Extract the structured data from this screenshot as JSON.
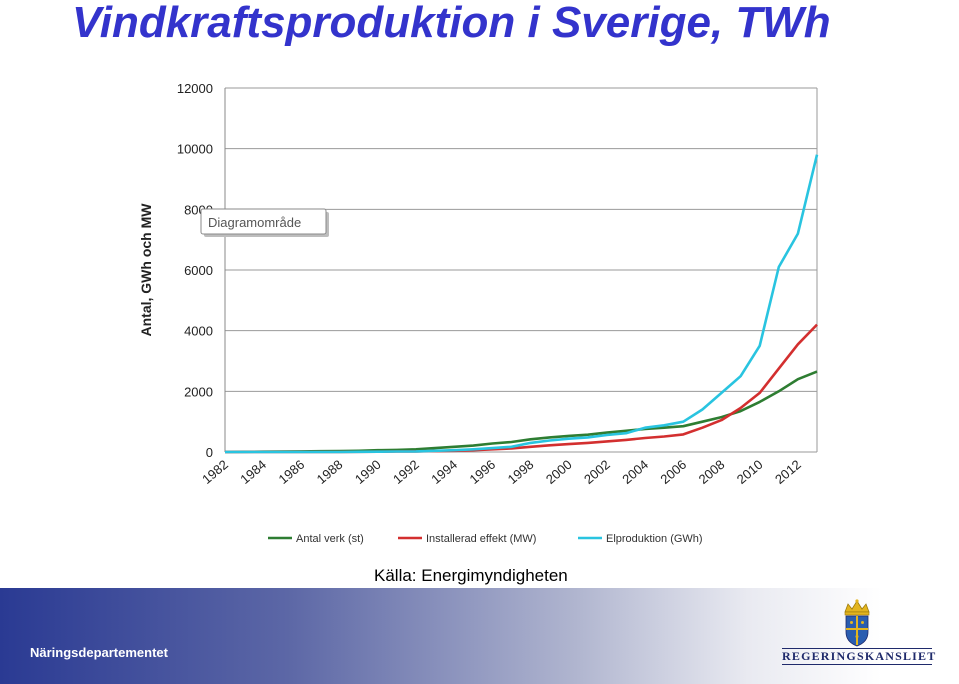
{
  "header": {
    "title": "Vindkraftsproduktion i Sverige, TWh"
  },
  "chart_data": {
    "type": "line",
    "ylabel": "Antal, GWh och MW",
    "ylim": [
      0,
      12000
    ],
    "yticks": [
      "0",
      "2000",
      "4000",
      "6000",
      "8000",
      "10000",
      "12000"
    ],
    "xlim": [
      1982,
      2013
    ],
    "xticks": [
      "1982",
      "1984",
      "1986",
      "1988",
      "1990",
      "1992",
      "1994",
      "1996",
      "1998",
      "2000",
      "2002",
      "2004",
      "2006",
      "2008",
      "2010",
      "2012"
    ],
    "grid": true,
    "legend_position": "bottom",
    "tooltip": "Diagramområde",
    "series": [
      {
        "name": "Antal verk (st)",
        "color": "#2e7d32",
        "x": [
          1982,
          1983,
          1984,
          1985,
          1986,
          1987,
          1988,
          1989,
          1990,
          1991,
          1992,
          1993,
          1994,
          1995,
          1996,
          1997,
          1998,
          1999,
          2000,
          2001,
          2002,
          2003,
          2004,
          2005,
          2006,
          2007,
          2008,
          2009,
          2010,
          2011,
          2012,
          2013
        ],
        "y": [
          0,
          5,
          10,
          15,
          20,
          25,
          30,
          40,
          60,
          70,
          90,
          130,
          170,
          210,
          280,
          330,
          420,
          480,
          530,
          570,
          640,
          700,
          760,
          800,
          850,
          1000,
          1150,
          1350,
          1650,
          2000,
          2400,
          2650
        ]
      },
      {
        "name": "Installerad effekt (MW)",
        "color": "#d32f2f",
        "x": [
          1982,
          1983,
          1984,
          1985,
          1986,
          1987,
          1988,
          1989,
          1990,
          1991,
          1992,
          1993,
          1994,
          1995,
          1996,
          1997,
          1998,
          1999,
          2000,
          2001,
          2002,
          2003,
          2004,
          2005,
          2006,
          2007,
          2008,
          2009,
          2010,
          2011,
          2012,
          2013
        ],
        "y": [
          0,
          0,
          0,
          0,
          0,
          0,
          0,
          5,
          10,
          15,
          20,
          30,
          40,
          60,
          90,
          120,
          170,
          220,
          260,
          300,
          350,
          400,
          460,
          510,
          580,
          800,
          1050,
          1450,
          1950,
          2750,
          3550,
          4200
        ]
      },
      {
        "name": "Elproduktion (GWh)",
        "color": "#29c4e0",
        "x": [
          1982,
          1983,
          1984,
          1985,
          1986,
          1987,
          1988,
          1989,
          1990,
          1991,
          1992,
          1993,
          1994,
          1995,
          1996,
          1997,
          1998,
          1999,
          2000,
          2001,
          2002,
          2003,
          2004,
          2005,
          2006,
          2007,
          2008,
          2009,
          2010,
          2011,
          2012,
          2013
        ],
        "y": [
          0,
          0,
          0,
          0,
          0,
          0,
          0,
          5,
          10,
          15,
          20,
          40,
          60,
          90,
          130,
          170,
          300,
          380,
          440,
          480,
          560,
          620,
          800,
          880,
          1000,
          1400,
          1950,
          2500,
          3500,
          6100,
          7200,
          9800
        ]
      }
    ]
  },
  "footer": {
    "source": "Källa: Energimyndigheten",
    "department": "Näringsdepartementet",
    "logo_text": "REGERINGSKANSLIET"
  },
  "colors": {
    "title": "#3333cc",
    "grid": "#9a9a9a",
    "logo": "#1f2a6b"
  }
}
